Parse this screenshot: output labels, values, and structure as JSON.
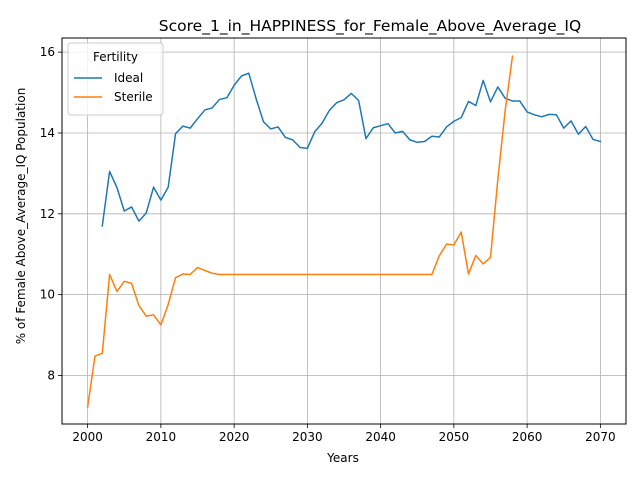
{
  "chart_data": {
    "type": "line",
    "title": "Score_1_in_HAPPINESS_for_Female_Above_Average_IQ",
    "xlabel": "Years",
    "ylabel": "% of Female Above_Average_IQ Population",
    "xlim": [
      1996.5,
      2073.5
    ],
    "ylim": [
      6.8,
      16.35
    ],
    "xticks": [
      2000,
      2010,
      2020,
      2030,
      2040,
      2050,
      2060,
      2070
    ],
    "yticks": [
      8,
      10,
      12,
      14,
      16
    ],
    "grid": true,
    "legend": {
      "title": "Fertility",
      "placement": "top-left"
    },
    "series": [
      {
        "name": "Ideal",
        "color": "#1f77b4",
        "x": [
          2002,
          2003,
          2004,
          2005,
          2006,
          2007,
          2008,
          2009,
          2010,
          2011,
          2012,
          2013,
          2014,
          2015,
          2016,
          2017,
          2018,
          2019,
          2020,
          2021,
          2022,
          2023,
          2024,
          2025,
          2026,
          2027,
          2028,
          2029,
          2030,
          2031,
          2032,
          2033,
          2034,
          2035,
          2036,
          2037,
          2038,
          2039,
          2040,
          2041,
          2042,
          2043,
          2044,
          2045,
          2046,
          2047,
          2048,
          2049,
          2050,
          2051,
          2052,
          2053,
          2054,
          2055,
          2056,
          2057,
          2058,
          2059,
          2060,
          2061,
          2062,
          2063,
          2064,
          2065,
          2066,
          2067,
          2068,
          2069,
          2070
        ],
        "y": [
          11.7,
          13.05,
          12.65,
          12.07,
          12.17,
          11.82,
          12.02,
          12.66,
          12.34,
          12.66,
          13.98,
          14.17,
          14.12,
          14.35,
          14.57,
          14.62,
          14.83,
          14.87,
          15.18,
          15.41,
          15.48,
          14.85,
          14.28,
          14.1,
          14.15,
          13.89,
          13.83,
          13.64,
          13.62,
          14.03,
          14.24,
          14.56,
          14.75,
          14.82,
          14.98,
          14.8,
          13.86,
          14.13,
          14.18,
          14.23,
          14.0,
          14.04,
          13.83,
          13.77,
          13.79,
          13.92,
          13.9,
          14.15,
          14.29,
          14.38,
          14.78,
          14.68,
          15.3,
          14.77,
          15.14,
          14.86,
          14.79,
          14.79,
          14.52,
          14.45,
          14.4,
          14.46,
          14.45,
          14.12,
          14.3,
          13.97,
          14.16,
          13.84,
          13.79
        ]
      },
      {
        "name": "Sterile",
        "color": "#ff7f0e",
        "x": [
          2000,
          2001,
          2002,
          2003,
          2004,
          2005,
          2006,
          2007,
          2008,
          2009,
          2010,
          2011,
          2012,
          2013,
          2014,
          2015,
          2016,
          2017,
          2018,
          2019,
          2020,
          2021,
          2022,
          2023,
          2024,
          2025,
          2026,
          2027,
          2028,
          2029,
          2030,
          2031,
          2032,
          2033,
          2034,
          2035,
          2036,
          2037,
          2038,
          2039,
          2040,
          2041,
          2042,
          2043,
          2044,
          2045,
          2046,
          2047,
          2048,
          2049,
          2050,
          2051,
          2052,
          2053,
          2054,
          2055,
          2056,
          2057,
          2058
        ],
        "y": [
          7.22,
          8.48,
          8.55,
          10.5,
          10.08,
          10.33,
          10.28,
          9.73,
          9.47,
          9.5,
          9.25,
          9.76,
          10.42,
          10.51,
          10.5,
          10.67,
          10.6,
          10.53,
          10.5,
          10.5,
          10.5,
          10.5,
          10.5,
          10.5,
          10.5,
          10.5,
          10.5,
          10.5,
          10.5,
          10.5,
          10.5,
          10.5,
          10.5,
          10.5,
          10.5,
          10.5,
          10.5,
          10.5,
          10.5,
          10.5,
          10.5,
          10.5,
          10.5,
          10.5,
          10.5,
          10.5,
          10.5,
          10.5,
          10.96,
          11.25,
          11.23,
          11.55,
          10.51,
          10.97,
          10.76,
          10.92,
          12.85,
          14.55,
          15.9
        ]
      }
    ]
  }
}
